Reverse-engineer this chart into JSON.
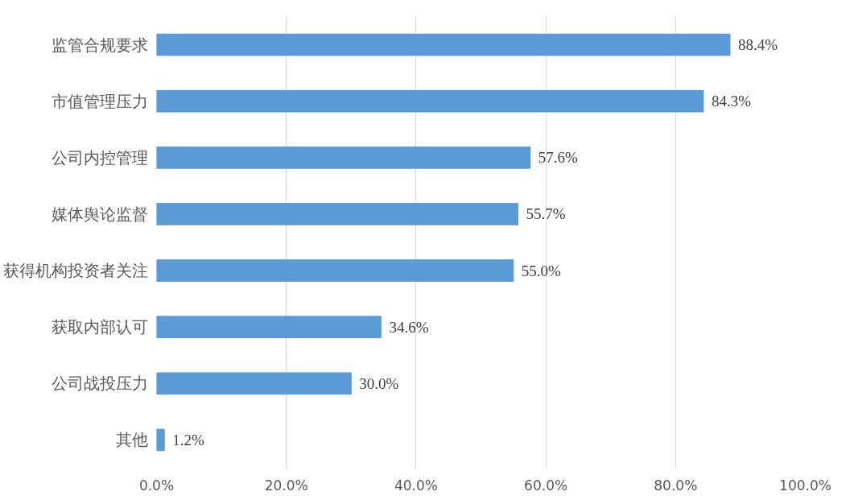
{
  "chart_data": {
    "type": "bar",
    "orientation": "horizontal",
    "categories": [
      "监管合规要求",
      "市值管理压力",
      "公司内控管理",
      "媒体舆论监督",
      "获得机构投资者关注",
      "获取内部认可",
      "公司战投压力",
      "其他"
    ],
    "values": [
      88.4,
      84.3,
      57.6,
      55.7,
      55.0,
      34.6,
      30.0,
      1.2
    ],
    "value_labels": [
      "88.4%",
      "84.3%",
      "57.6%",
      "55.7%",
      "55.0%",
      "34.6%",
      "30.0%",
      "1.2%"
    ],
    "color": "#5b9bd5",
    "xlim": [
      0,
      100
    ],
    "xticks": [
      {
        "value": 0,
        "label": "0.0%"
      },
      {
        "value": 20,
        "label": "20.0%"
      },
      {
        "value": 40,
        "label": "40.0%"
      },
      {
        "value": 60,
        "label": "60.0%"
      },
      {
        "value": 80,
        "label": "80.0%"
      },
      {
        "value": 100,
        "label": "100.0%"
      }
    ],
    "grid": "x"
  }
}
